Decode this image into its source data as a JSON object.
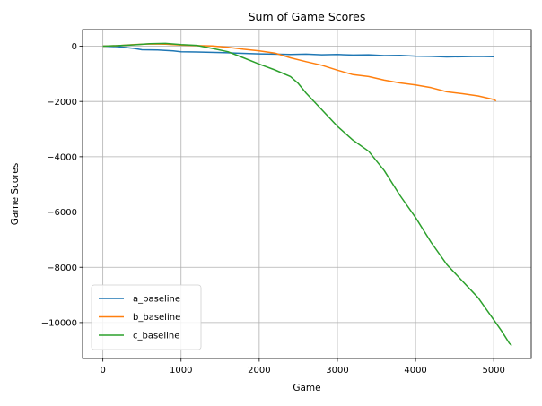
{
  "chart_data": {
    "type": "line",
    "title": "Sum of Game Scores",
    "xlabel": "Game",
    "ylabel": "Game Scores",
    "xlim": [
      -260,
      5480
    ],
    "ylim": [
      -11300,
      600
    ],
    "xticks": [
      0,
      1000,
      2000,
      3000,
      4000,
      5000
    ],
    "xtick_labels": [
      "0",
      "1000",
      "2000",
      "3000",
      "4000",
      "5000"
    ],
    "yticks": [
      0,
      -2000,
      -4000,
      -6000,
      -8000,
      -10000
    ],
    "ytick_labels": [
      "0",
      "−2000",
      "−4000",
      "−6000",
      "−8000",
      "−10000"
    ],
    "grid": true,
    "legend_position": "lower-left",
    "series": [
      {
        "name": "a_baseline",
        "color": "#1f77b4",
        "x": [
          0,
          200,
          400,
          500,
          700,
          900,
          1000,
          1200,
          1500,
          1700,
          2000,
          2200,
          2400,
          2600,
          2800,
          3000,
          3200,
          3400,
          3600,
          3800,
          4000,
          4200,
          4400,
          4600,
          4800,
          5000
        ],
        "y": [
          0,
          -20,
          -80,
          -130,
          -140,
          -170,
          -200,
          -210,
          -230,
          -250,
          -280,
          -290,
          -300,
          -290,
          -310,
          -300,
          -320,
          -310,
          -340,
          -330,
          -360,
          -370,
          -390,
          -380,
          -370,
          -380
        ]
      },
      {
        "name": "b_baseline",
        "color": "#ff7f0e",
        "x": [
          0,
          200,
          400,
          600,
          800,
          1000,
          1200,
          1400,
          1600,
          1800,
          2000,
          2200,
          2400,
          2600,
          2800,
          3000,
          3200,
          3400,
          3600,
          3800,
          4000,
          4200,
          4400,
          4600,
          4800,
          5000,
          5030
        ],
        "y": [
          0,
          20,
          60,
          80,
          70,
          40,
          20,
          10,
          -40,
          -110,
          -170,
          -250,
          -420,
          -560,
          -690,
          -870,
          -1030,
          -1100,
          -1230,
          -1330,
          -1400,
          -1500,
          -1650,
          -1720,
          -1800,
          -1930,
          -1980
        ]
      },
      {
        "name": "c_baseline",
        "color": "#2ca02c",
        "x": [
          0,
          200,
          400,
          600,
          800,
          1000,
          1200,
          1400,
          1600,
          1800,
          2000,
          2200,
          2400,
          2500,
          2600,
          2800,
          3000,
          3200,
          3400,
          3600,
          3800,
          4000,
          4200,
          4400,
          4600,
          4800,
          5000,
          5100,
          5200,
          5230
        ],
        "y": [
          0,
          20,
          50,
          90,
          100,
          60,
          30,
          -80,
          -200,
          -420,
          -650,
          -860,
          -1100,
          -1350,
          -1700,
          -2300,
          -2900,
          -3400,
          -3800,
          -4500,
          -5400,
          -6200,
          -7100,
          -7900,
          -8500,
          -9100,
          -9900,
          -10300,
          -10750,
          -10830
        ]
      }
    ]
  }
}
